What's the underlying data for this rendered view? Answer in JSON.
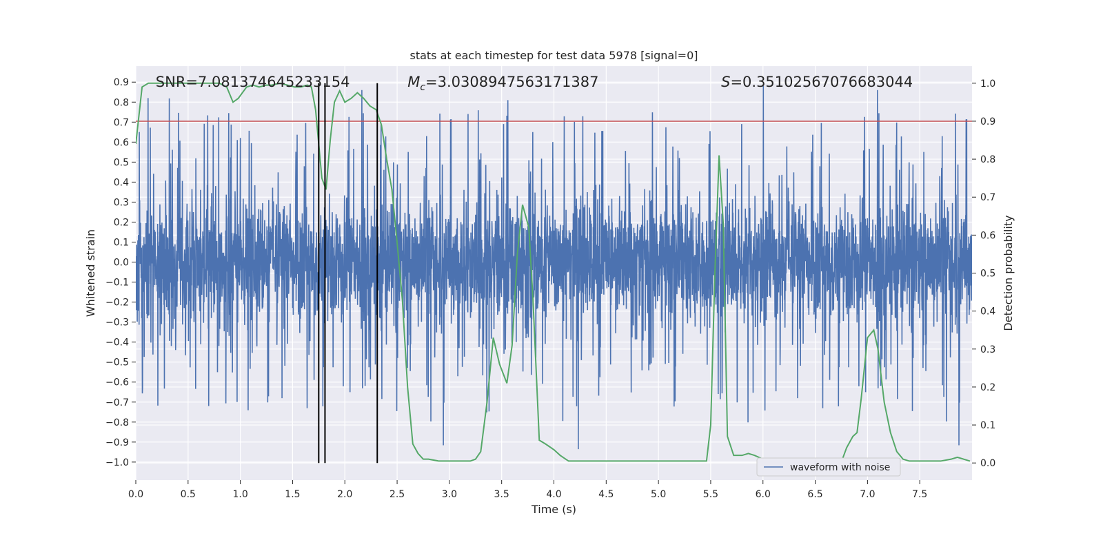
{
  "chart_data": {
    "type": "line",
    "title": "stats at each timestep for test data 5978 [signal=0]",
    "xlabel": "Time (s)",
    "ylabel_left": "Whitened strain",
    "ylabel_right": "Detection probability",
    "xlim": [
      0.0,
      8.0
    ],
    "ylim_left": [
      -1.09,
      0.98
    ],
    "ylim_right": [
      -0.045,
      1.045
    ],
    "x_ticks": [
      0.0,
      0.5,
      1.0,
      1.5,
      2.0,
      2.5,
      3.0,
      3.5,
      4.0,
      4.5,
      5.0,
      5.5,
      6.0,
      6.5,
      7.0,
      7.5
    ],
    "x_tick_labels": [
      "0.0",
      "0.5",
      "1.0",
      "1.5",
      "2.0",
      "2.5",
      "3.0",
      "3.5",
      "4.0",
      "4.5",
      "5.0",
      "5.5",
      "6.0",
      "6.5",
      "7.0",
      "7.5"
    ],
    "y_left_ticks": [
      0.9,
      0.8,
      0.7,
      0.6,
      0.5,
      0.4,
      0.3,
      0.2,
      0.1,
      0.0,
      -0.1,
      -0.2,
      -0.3,
      -0.4,
      -0.5,
      -0.6,
      -0.7,
      -0.8,
      -0.9,
      -1.0
    ],
    "y_left_tick_labels": [
      "0.9",
      "0.8",
      "0.7",
      "0.6",
      "0.5",
      "0.4",
      "0.3",
      "0.2",
      "0.1",
      "0.0",
      "−0.1",
      "−0.2",
      "−0.3",
      "−0.4",
      "−0.5",
      "−0.6",
      "−0.7",
      "−0.8",
      "−0.9",
      "−1.0"
    ],
    "y_right_ticks": [
      1.0,
      0.9,
      0.8,
      0.7,
      0.6,
      0.5,
      0.4,
      0.3,
      0.2,
      0.1,
      0.0
    ],
    "y_right_tick_labels": [
      "1.0",
      "0.9",
      "0.8",
      "0.7",
      "0.6",
      "0.5",
      "0.4",
      "0.3",
      "0.2",
      "0.1",
      "0.0"
    ],
    "grid": true,
    "background": "#eaeaf2",
    "threshold": {
      "y": 0.9,
      "axis": "right",
      "color": "#c44e52"
    },
    "vertical_markers": {
      "x": [
        1.75,
        1.81,
        2.31
      ],
      "y_top": 1.0,
      "y_bottom": 0.0,
      "axis": "right",
      "color": "#000000"
    },
    "annotations": [
      {
        "text": "SNR=7.081374645233154",
        "x": 0.19,
        "y": 0.9,
        "axis": "left"
      },
      {
        "text_math": "M",
        "text_sub": "c",
        "text_rest": "=3.0308947563171387",
        "x": 2.6,
        "y": 0.9,
        "axis": "left"
      },
      {
        "text_math": "S",
        "text_rest": "=0.35102567076683044",
        "x": 5.6,
        "y": 0.9,
        "axis": "left"
      }
    ],
    "series": [
      {
        "name": "waveform with noise",
        "axis": "left",
        "color": "#4c72b0",
        "description": "dense whitened-strain noise, 4096 samples over 8 s; body roughly ±0.3, spikes up to 0.88 and down to -1.0",
        "x_range": [
          0.0,
          8.0
        ],
        "envelope": {
          "core_amplitude": 0.3,
          "max": 0.88,
          "min": -1.0
        }
      },
      {
        "axis": "right",
        "color": "#55a868",
        "x": [
          0.0,
          0.06,
          0.12,
          0.18,
          0.25,
          0.3,
          0.4,
          0.5,
          0.6,
          0.7,
          0.8,
          0.87,
          0.93,
          0.98,
          1.06,
          1.12,
          1.18,
          1.25,
          1.3,
          1.38,
          1.45,
          1.52,
          1.58,
          1.64,
          1.68,
          1.72,
          1.75,
          1.78,
          1.82,
          1.86,
          1.9,
          1.95,
          2.0,
          2.06,
          2.12,
          2.18,
          2.24,
          2.3,
          2.35,
          2.4,
          2.45,
          2.5,
          2.55,
          2.6,
          2.65,
          2.7,
          2.75,
          2.8,
          2.9,
          3.0,
          3.1,
          3.2,
          3.25,
          3.3,
          3.36,
          3.42,
          3.48,
          3.55,
          3.6,
          3.65,
          3.7,
          3.76,
          3.8,
          3.86,
          3.92,
          4.0,
          4.06,
          4.14,
          4.2,
          4.3,
          4.5,
          4.7,
          4.9,
          5.1,
          5.2,
          5.3,
          5.4,
          5.46,
          5.5,
          5.54,
          5.58,
          5.62,
          5.66,
          5.72,
          5.8,
          5.86,
          5.92,
          6.0,
          6.1,
          6.2,
          6.4,
          6.6,
          6.7,
          6.76,
          6.8,
          6.86,
          6.9,
          6.94,
          7.0,
          7.06,
          7.1,
          7.16,
          7.22,
          7.28,
          7.34,
          7.4,
          7.5,
          7.6,
          7.7,
          7.8,
          7.86,
          7.92,
          7.98
        ],
        "values": [
          0.84,
          0.99,
          1.0,
          1.0,
          1.0,
          1.0,
          1.0,
          1.0,
          1.0,
          1.0,
          1.0,
          0.99,
          0.95,
          0.96,
          0.99,
          0.995,
          0.99,
          0.995,
          0.995,
          1.0,
          0.995,
          0.99,
          0.99,
          0.995,
          0.99,
          0.93,
          0.84,
          0.75,
          0.72,
          0.85,
          0.95,
          0.98,
          0.95,
          0.96,
          0.975,
          0.96,
          0.94,
          0.93,
          0.89,
          0.8,
          0.72,
          0.58,
          0.43,
          0.2,
          0.05,
          0.025,
          0.01,
          0.01,
          0.005,
          0.005,
          0.005,
          0.005,
          0.01,
          0.03,
          0.16,
          0.33,
          0.26,
          0.21,
          0.31,
          0.55,
          0.68,
          0.62,
          0.43,
          0.06,
          0.05,
          0.035,
          0.02,
          0.005,
          0.005,
          0.005,
          0.005,
          0.005,
          0.005,
          0.005,
          0.005,
          0.005,
          0.005,
          0.005,
          0.1,
          0.5,
          0.81,
          0.63,
          0.07,
          0.02,
          0.02,
          0.025,
          0.02,
          0.01,
          0.005,
          0.005,
          0.005,
          0.005,
          0.005,
          0.01,
          0.04,
          0.07,
          0.08,
          0.17,
          0.33,
          0.35,
          0.3,
          0.16,
          0.08,
          0.03,
          0.01,
          0.005,
          0.005,
          0.005,
          0.005,
          0.01,
          0.015,
          0.01,
          0.005
        ]
      }
    ],
    "legend": {
      "placement": "lower-right",
      "entries": [
        "waveform with noise"
      ]
    }
  }
}
